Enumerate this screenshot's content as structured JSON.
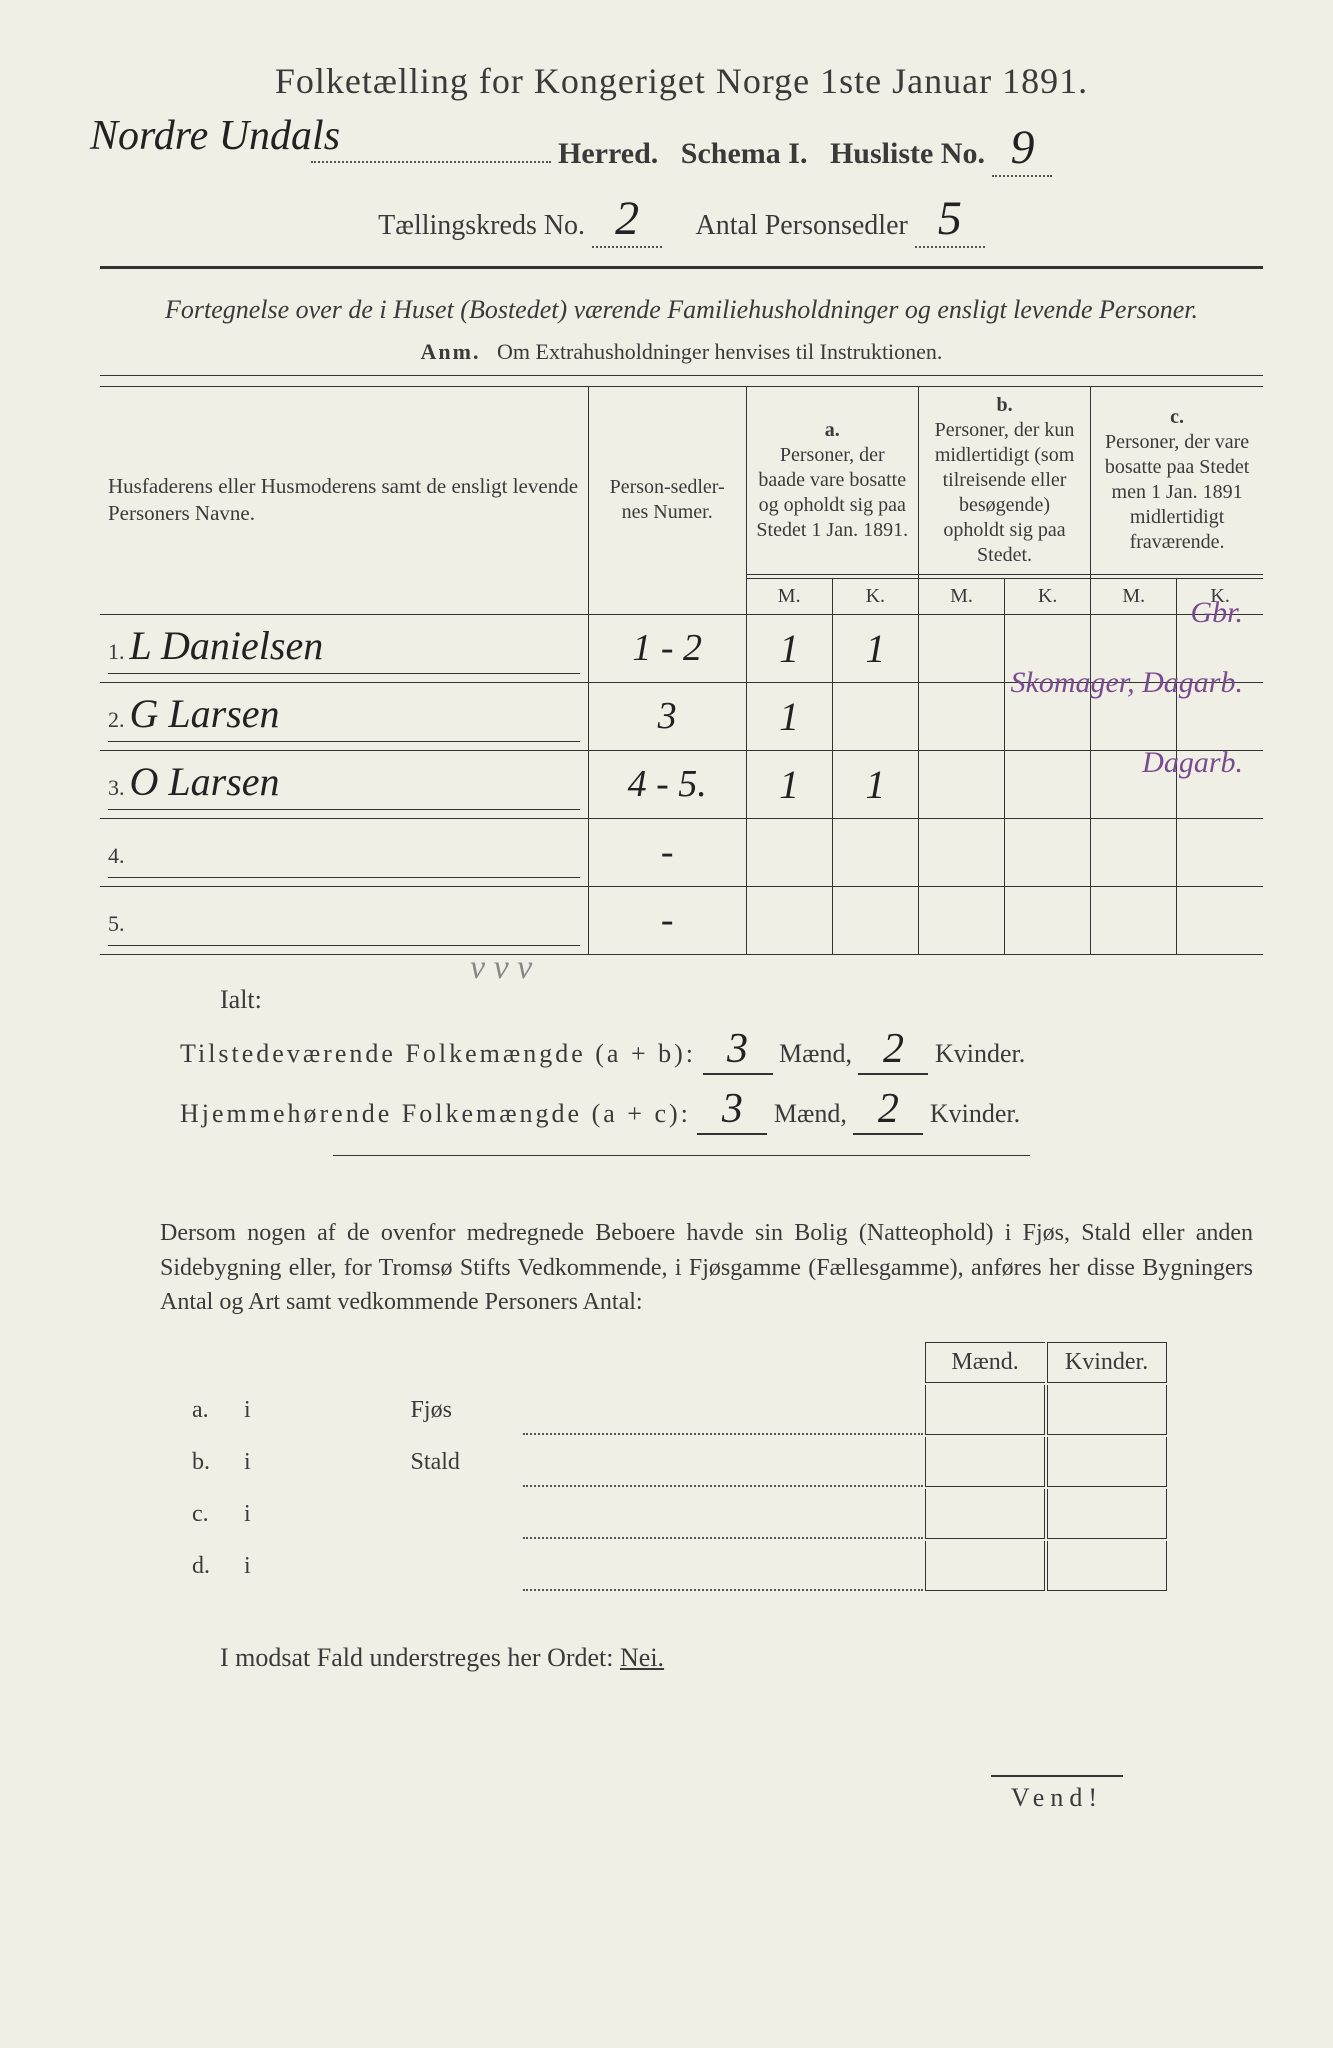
{
  "header": {
    "title": "Folketælling for Kongeriget Norge 1ste Januar 1891.",
    "herred_name": "Nordre Undals",
    "line2_parts": {
      "herred": "Herred.",
      "schema": "Schema I.",
      "husliste": "Husliste No."
    },
    "husliste_no": "9",
    "taellingskreds_label": "Tællingskreds No.",
    "taellingskreds_no": "2",
    "antal_label": "Antal Personsedler",
    "antal_value": "5"
  },
  "subtitle": "Fortegnelse over de i Huset (Bostedet) værende Familiehusholdninger og ensligt levende Personer.",
  "anm_label": "Anm.",
  "anm_text": "Om Extrahusholdninger henvises til Instruktionen.",
  "table": {
    "col1": "Husfaderens eller Husmoderens samt de ensligt levende Personers Navne.",
    "col2": "Person-sedler-nes Numer.",
    "col_a": "a.",
    "col_a_text": "Personer, der baade vare bosatte og opholdt sig paa Stedet 1 Jan. 1891.",
    "col_b": "b.",
    "col_b_text": "Personer, der kun midlertidigt (som tilreisende eller besøgende) opholdt sig paa Stedet.",
    "col_c": "c.",
    "col_c_text": "Personer, der vare bosatte paa Stedet men 1 Jan. 1891 midlertidigt fraværende.",
    "m": "M.",
    "k": "K.",
    "rows": [
      {
        "n": "1.",
        "name": "L Danielsen",
        "num": "1 - 2",
        "am": "1",
        "ak": "1",
        "bm": "",
        "bk": "",
        "cm": "",
        "ck": "",
        "note": "Gbr."
      },
      {
        "n": "2.",
        "name": "G Larsen",
        "num": "3",
        "am": "1",
        "ak": "",
        "bm": "",
        "bk": "",
        "cm": "",
        "ck": "",
        "note": "Skomager, Dagarb."
      },
      {
        "n": "3.",
        "name": "O Larsen",
        "num": "4 - 5.",
        "am": "1",
        "ak": "1",
        "bm": "",
        "bk": "",
        "cm": "",
        "ck": "",
        "note": "Dagarb."
      },
      {
        "n": "4.",
        "name": "",
        "num": "-",
        "am": "",
        "ak": "",
        "bm": "",
        "bk": "",
        "cm": "",
        "ck": "",
        "note": ""
      },
      {
        "n": "5.",
        "name": "",
        "num": "-",
        "am": "",
        "ak": "",
        "bm": "",
        "bk": "",
        "cm": "",
        "ck": "",
        "note": ""
      }
    ],
    "checkmarks": "v  v  v"
  },
  "totals": {
    "ialt": "Ialt:",
    "line1_label": "Tilstedeværende Folkemængde (a + b):",
    "line2_label": "Hjemmehørende Folkemængde (a + c):",
    "maend": "Mænd,",
    "kvinder": "Kvinder.",
    "t_m": "3",
    "t_k": "2",
    "h_m": "3",
    "h_k": "2"
  },
  "lower": {
    "text": "Dersom nogen af de ovenfor medregnede Beboere havde sin Bolig (Natteophold) i Fjøs, Stald eller anden Sidebygning eller, for Tromsø Stifts Vedkommende, i Fjøsgamme (Fællesgamme), anføres her disse Bygningers Antal og Art samt vedkommende Personers Antal:",
    "maend": "Mænd.",
    "kvinder": "Kvinder.",
    "rows": [
      {
        "l": "a.",
        "i": "i",
        "t": "Fjøs"
      },
      {
        "l": "b.",
        "i": "i",
        "t": "Stald"
      },
      {
        "l": "c.",
        "i": "i",
        "t": ""
      },
      {
        "l": "d.",
        "i": "i",
        "t": ""
      }
    ],
    "nei_line_a": "I modsat Fald understreges her Ordet:",
    "nei_line_b": "Nei.",
    "vend": "Vend!"
  },
  "colors": {
    "bg": "#f0efe6",
    "ink": "#3a3a3a",
    "handwriting": "#222222",
    "purple": "#7a4a8f"
  }
}
